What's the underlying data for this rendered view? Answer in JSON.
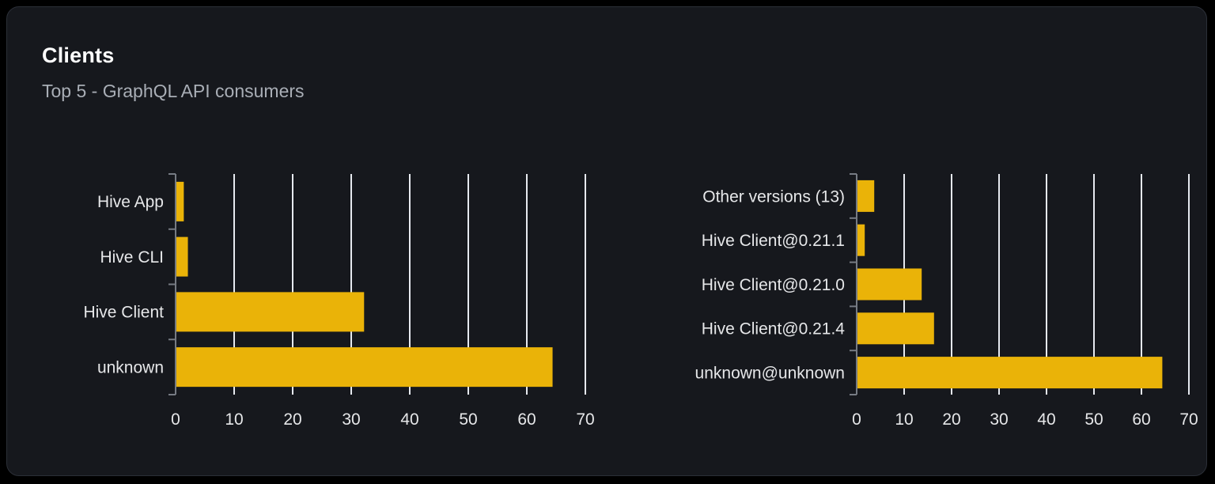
{
  "card": {
    "title": "Clients",
    "subtitle": "Top 5 - GraphQL API consumers"
  },
  "colors": {
    "page_bg": "#000000",
    "card_bg": "#16181d",
    "card_border": "#2b2f37",
    "title": "#ffffff",
    "subtitle": "#a9aeb6",
    "bar": "#eab308",
    "grid": "#e6e9ef",
    "axis": "#767b83",
    "label": "#e6e7e9"
  },
  "chart_data": [
    {
      "id": "clients-by-name",
      "type": "bar",
      "orientation": "horizontal",
      "title": "",
      "categories": [
        "Hive App",
        "Hive CLI",
        "Hive Client",
        "unknown"
      ],
      "values": [
        1.4,
        2.1,
        32.2,
        64.4
      ],
      "xlim": [
        0,
        70
      ],
      "xticks": [
        0,
        10,
        20,
        30,
        40,
        50,
        60,
        70
      ],
      "grid": true,
      "legend": false
    },
    {
      "id": "clients-by-version",
      "type": "bar",
      "orientation": "horizontal",
      "title": "",
      "categories": [
        "Other versions (13)",
        "Hive Client@0.21.1",
        "Hive Client@0.21.0",
        "Hive Client@0.21.4",
        "unknown@unknown"
      ],
      "values": [
        3.7,
        1.7,
        13.7,
        16.3,
        64.4
      ],
      "xlim": [
        0,
        70
      ],
      "xticks": [
        0,
        10,
        20,
        30,
        40,
        50,
        60,
        70
      ],
      "grid": true,
      "legend": false
    }
  ]
}
